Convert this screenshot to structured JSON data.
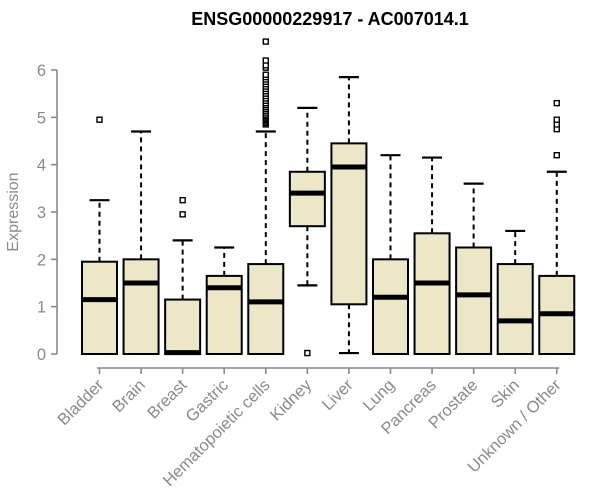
{
  "title": "ENSG00000229917 - AC007014.1",
  "chart_data": {
    "type": "boxplot",
    "title": "ENSG00000229917 - AC007014.1",
    "xlabel": "",
    "ylabel": "Expression",
    "ylim": [
      0,
      6
    ],
    "y_ticks": [
      0,
      1,
      2,
      3,
      4,
      5,
      6
    ],
    "grid": false,
    "legend": "none",
    "categories": [
      "Bladder",
      "Brain",
      "Breast",
      "Gastric",
      "Hematopoietic cells",
      "Kidney",
      "Liver",
      "Lung",
      "Pancreas",
      "Prostate",
      "Skin",
      "Unknown / Other"
    ],
    "series": [
      {
        "name": "Bladder",
        "whisker_low": 0,
        "q1": 0,
        "median": 1.15,
        "q3": 1.95,
        "whisker_high": 3.25,
        "outliers": [
          4.95
        ]
      },
      {
        "name": "Brain",
        "whisker_low": 0,
        "q1": 0,
        "median": 1.5,
        "q3": 2.0,
        "whisker_high": 4.7,
        "outliers": []
      },
      {
        "name": "Breast",
        "whisker_low": 0,
        "q1": 0,
        "median": 0.03,
        "q3": 1.15,
        "whisker_high": 2.4,
        "outliers": [
          2.95,
          3.25
        ]
      },
      {
        "name": "Gastric",
        "whisker_low": 0,
        "q1": 0,
        "median": 1.4,
        "q3": 1.65,
        "whisker_high": 2.25,
        "outliers": []
      },
      {
        "name": "Hematopoietic cells",
        "whisker_low": 0,
        "q1": 0,
        "median": 1.1,
        "q3": 1.9,
        "whisker_high": 4.7,
        "outliers": [
          4.85,
          4.88,
          4.91,
          4.94,
          4.97,
          5.0,
          5.03,
          5.06,
          5.1,
          5.14,
          5.18,
          5.22,
          5.26,
          5.3,
          5.35,
          5.4,
          5.45,
          5.5,
          5.55,
          5.6,
          5.65,
          5.7,
          5.75,
          5.8,
          5.85,
          5.9,
          6.05,
          6.1,
          6.2,
          6.6
        ]
      },
      {
        "name": "Kidney",
        "whisker_low": 1.45,
        "q1": 2.7,
        "median": 3.4,
        "q3": 3.85,
        "whisker_high": 5.2,
        "outliers": [
          0.02
        ]
      },
      {
        "name": "Liver",
        "whisker_low": 0.02,
        "q1": 1.05,
        "median": 3.95,
        "q3": 4.45,
        "whisker_high": 5.85,
        "outliers": []
      },
      {
        "name": "Lung",
        "whisker_low": 0,
        "q1": 0,
        "median": 1.2,
        "q3": 2.0,
        "whisker_high": 4.2,
        "outliers": []
      },
      {
        "name": "Pancreas",
        "whisker_low": 0,
        "q1": 0,
        "median": 1.5,
        "q3": 2.55,
        "whisker_high": 4.15,
        "outliers": []
      },
      {
        "name": "Prostate",
        "whisker_low": 0,
        "q1": 0,
        "median": 1.25,
        "q3": 2.25,
        "whisker_high": 3.6,
        "outliers": []
      },
      {
        "name": "Skin",
        "whisker_low": 0,
        "q1": 0,
        "median": 0.7,
        "q3": 1.9,
        "whisker_high": 2.6,
        "outliers": []
      },
      {
        "name": "Unknown / Other",
        "whisker_low": 0,
        "q1": 0,
        "median": 0.85,
        "q3": 1.65,
        "whisker_high": 3.85,
        "outliers": [
          4.2,
          4.75,
          4.85,
          4.95,
          5.3
        ]
      }
    ],
    "colors": {
      "box_fill": "#ece7c8",
      "box_stroke": "#000000",
      "median_color": "#000000",
      "whisker_color": "#000000",
      "outlier_stroke": "#000000",
      "axis_color": "#8a8a8a",
      "tick_text_color": "#8a8a8a",
      "title_color": "#000000",
      "background": "#ffffff"
    }
  }
}
